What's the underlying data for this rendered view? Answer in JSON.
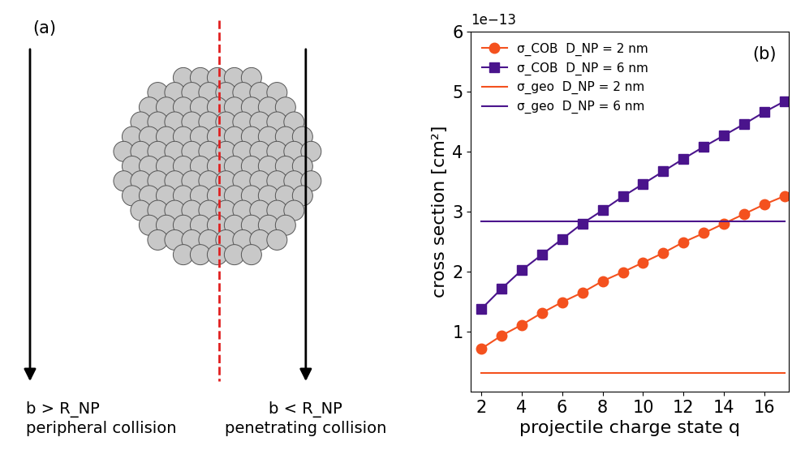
{
  "diagram": {
    "label": "(a)",
    "left_arrow": {
      "line1": "b > R_NP",
      "line2": "peripheral collision"
    },
    "right_arrow": {
      "line1": "b < R_NP",
      "line2": "penetrating collision"
    }
  },
  "chart_data": {
    "type": "line",
    "annotations": [
      "1e−13",
      "(b)"
    ],
    "x_label": "projectile charge state q",
    "y_label": "cross section [cm²]",
    "x": [
      2,
      3,
      4,
      5,
      6,
      7,
      8,
      9,
      10,
      11,
      12,
      13,
      14,
      15,
      16,
      17
    ],
    "series": [
      {
        "name": "σ_COB  D_NP = 2 nm",
        "color": "#f4511e",
        "marker": "circle",
        "line_style": "solid",
        "values": [
          7.1e-14,
          9.3e-14,
          1.11e-13,
          1.31e-13,
          1.49e-13,
          1.65e-13,
          1.84e-13,
          1.99e-13,
          2.15e-13,
          2.31e-13,
          2.49e-13,
          2.64e-13,
          2.8e-13,
          2.96e-13,
          3.12e-13,
          3.26e-13
        ]
      },
      {
        "name": "σ_COB  D_NP = 6 nm",
        "color": "#4a148c",
        "marker": "square",
        "line_style": "solid",
        "values": [
          1.37e-13,
          1.71e-13,
          2.02e-13,
          2.28e-13,
          2.54e-13,
          2.8e-13,
          3.02e-13,
          3.25e-13,
          3.46e-13,
          3.67e-13,
          3.88e-13,
          4.08e-13,
          4.27e-13,
          4.46e-13,
          4.66e-13,
          4.84e-13
        ]
      },
      {
        "name": "σ_geo  D_NP = 2 nm",
        "color": "#f4511e",
        "marker": "none",
        "line_style": "solid",
        "values": [
          3.1e-14,
          3.1e-14,
          3.1e-14,
          3.1e-14,
          3.1e-14,
          3.1e-14,
          3.1e-14,
          3.1e-14,
          3.1e-14,
          3.1e-14,
          3.1e-14,
          3.1e-14,
          3.1e-14,
          3.1e-14,
          3.1e-14,
          3.1e-14
        ]
      },
      {
        "name": "σ_geo  D_NP = 6 nm",
        "color": "#4a148c",
        "marker": "none",
        "line_style": "solid",
        "values": [
          2.83e-13,
          2.83e-13,
          2.83e-13,
          2.83e-13,
          2.83e-13,
          2.83e-13,
          2.83e-13,
          2.83e-13,
          2.83e-13,
          2.83e-13,
          2.83e-13,
          2.83e-13,
          2.83e-13,
          2.83e-13,
          2.83e-13,
          2.83e-13
        ]
      }
    ],
    "xlim": [
      1.5,
      17.2
    ],
    "xticks": [
      2,
      4,
      6,
      8,
      10,
      12,
      14,
      16
    ],
    "ylim": [
      0,
      6e-13
    ],
    "yticks": [
      {
        "value": 1e-13,
        "label": "1"
      },
      {
        "value": 2e-13,
        "label": "2"
      },
      {
        "value": 3e-13,
        "label": "3"
      },
      {
        "value": 4e-13,
        "label": "4"
      },
      {
        "value": 5e-13,
        "label": "5"
      },
      {
        "value": 6e-13,
        "label": "6"
      }
    ],
    "legend": "upper left",
    "grid": false
  }
}
